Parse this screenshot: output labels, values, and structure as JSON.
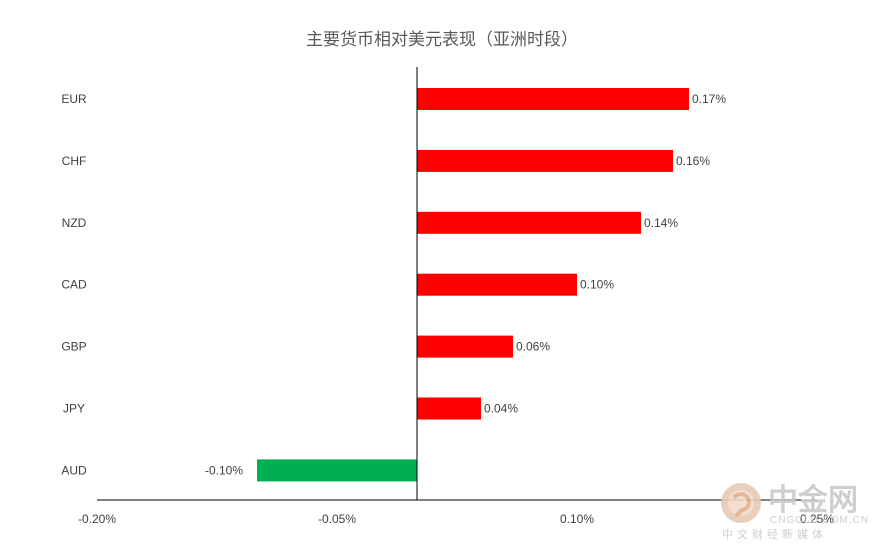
{
  "chart_data": {
    "type": "bar",
    "orientation": "horizontal",
    "title": "主要货币相对美元表现（亚洲时段）",
    "categories": [
      "EUR",
      "CHF",
      "NZD",
      "CAD",
      "GBP",
      "JPY",
      "AUD"
    ],
    "values": [
      0.17,
      0.16,
      0.14,
      0.1,
      0.06,
      0.04,
      -0.1
    ],
    "data_labels": [
      "0.17%",
      "0.16%",
      "0.14%",
      "0.10%",
      "0.06%",
      "0.04%",
      "-0.10%"
    ],
    "xlim": [
      -0.2,
      0.25
    ],
    "x_ticks": [
      -0.2,
      -0.05,
      0.1,
      0.25
    ],
    "x_tick_labels": [
      "-0.20%",
      "-0.05%",
      "0.10%",
      "0.25%"
    ],
    "colors": {
      "positive": "#ff0000",
      "negative": "#00b050",
      "axis": "#000000"
    },
    "grid": false,
    "legend": "none"
  },
  "watermark": {
    "name": "中金网",
    "url": "CNGOLD.COM.CN",
    "tagline": "中文财经新媒体",
    "logo_icon": "cngold-logo-icon"
  }
}
